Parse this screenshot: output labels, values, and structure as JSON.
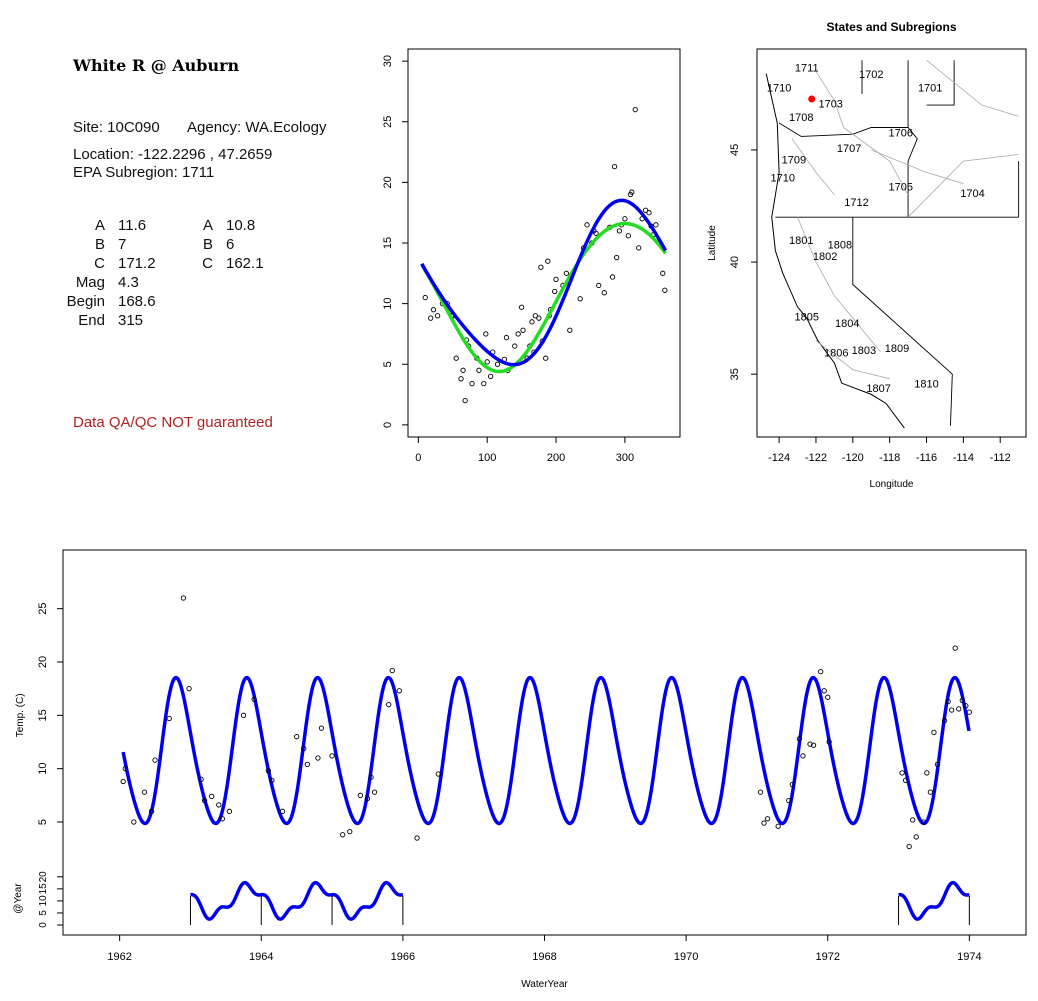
{
  "info": {
    "title": "White R @ Auburn",
    "site": "Site: 10C090",
    "agency": "Agency: WA.Ecology",
    "location": "Location: -122.2296 , 47.2659",
    "subregion": "EPA Subregion: 1711",
    "params_left": [
      {
        "k": "A",
        "v": "11.6"
      },
      {
        "k": "B",
        "v": "7"
      },
      {
        "k": "C",
        "v": "171.2"
      },
      {
        "k": "Mag",
        "v": "4.3"
      },
      {
        "k": "Begin",
        "v": "168.6"
      },
      {
        "k": "End",
        "v": "315"
      }
    ],
    "params_right": [
      {
        "k": "A",
        "v": "10.8"
      },
      {
        "k": "B",
        "v": "6"
      },
      {
        "k": "C",
        "v": "162.1"
      }
    ],
    "disclaimer": "Data QA/QC NOT guaranteed"
  },
  "colors": {
    "fit_blue": "#0000ee",
    "fit_green": "#22dd22",
    "site_marker": "#ff0000",
    "disclaimer": "#b22222"
  },
  "chart_data": [
    {
      "type": "scatter",
      "id": "seasonal",
      "title": "",
      "xlabel": "",
      "ylabel": "",
      "xlim": [
        -15,
        380
      ],
      "ylim": [
        -1,
        31
      ],
      "xticks": [
        0,
        100,
        200,
        300
      ],
      "yticks": [
        0,
        5,
        10,
        15,
        20,
        25,
        30
      ],
      "points": [
        [
          10,
          10.5
        ],
        [
          18,
          8.8
        ],
        [
          22,
          9.5
        ],
        [
          28,
          9.0
        ],
        [
          35,
          10
        ],
        [
          42,
          10
        ],
        [
          48,
          9
        ],
        [
          50,
          9
        ],
        [
          55,
          5.5
        ],
        [
          62,
          3.8
        ],
        [
          65,
          4.5
        ],
        [
          68,
          2
        ],
        [
          70,
          7
        ],
        [
          73,
          6.5
        ],
        [
          78,
          3.4
        ],
        [
          85,
          5.5
        ],
        [
          88,
          4.5
        ],
        [
          95,
          3.4
        ],
        [
          98,
          7.5
        ],
        [
          100,
          5.2
        ],
        [
          105,
          4
        ],
        [
          108,
          6
        ],
        [
          115,
          5
        ],
        [
          125,
          5.4
        ],
        [
          128,
          7.2
        ],
        [
          130,
          4.5
        ],
        [
          140,
          6.5
        ],
        [
          145,
          7.5
        ],
        [
          150,
          9.7
        ],
        [
          152,
          7.8
        ],
        [
          158,
          5.5
        ],
        [
          162,
          6.5
        ],
        [
          165,
          8.5
        ],
        [
          168,
          6
        ],
        [
          170,
          9
        ],
        [
          175,
          8.8
        ],
        [
          178,
          13
        ],
        [
          180,
          6.9
        ],
        [
          185,
          5.5
        ],
        [
          188,
          13.5
        ],
        [
          190,
          9
        ],
        [
          192,
          9.5
        ],
        [
          198,
          11
        ],
        [
          200,
          12
        ],
        [
          210,
          11.5
        ],
        [
          215,
          12.5
        ],
        [
          220,
          7.8
        ],
        [
          235,
          10.4
        ],
        [
          240,
          14.6
        ],
        [
          245,
          16.5
        ],
        [
          252,
          15
        ],
        [
          255,
          16
        ],
        [
          258,
          15.8
        ],
        [
          262,
          11.5
        ],
        [
          270,
          10.9
        ],
        [
          278,
          16.3
        ],
        [
          282,
          12.2
        ],
        [
          285,
          21.3
        ],
        [
          288,
          13.8
        ],
        [
          292,
          16
        ],
        [
          295,
          16.5
        ],
        [
          300,
          17
        ],
        [
          305,
          15.6
        ],
        [
          308,
          19
        ],
        [
          310,
          19.2
        ],
        [
          315,
          26
        ],
        [
          320,
          14.6
        ],
        [
          325,
          17
        ],
        [
          330,
          17.7
        ],
        [
          335,
          17.5
        ],
        [
          338,
          16.4
        ],
        [
          342,
          15.7
        ],
        [
          345,
          16.5
        ],
        [
          355,
          12.5
        ],
        [
          358,
          11.1
        ]
      ],
      "series": [
        {
          "name": "",
          "color": "#22dd22",
          "curve": "green"
        },
        {
          "name": "",
          "color": "#0000ee",
          "curve": "blue"
        }
      ]
    },
    {
      "type": "map",
      "id": "subregions",
      "title": "States and Subregions",
      "xlabel": "Longitude",
      "ylabel": "Latitude",
      "xlim": [
        -125.2,
        -110.6
      ],
      "ylim": [
        32.2,
        49.5
      ],
      "xticks": [
        -124,
        -122,
        -120,
        -118,
        -116,
        -114,
        -112
      ],
      "yticks": [
        35,
        40,
        45
      ],
      "site": {
        "lon": -122.23,
        "lat": 47.27
      },
      "region_labels": [
        {
          "t": "1711",
          "lon": -122.5,
          "lat": 48.5
        },
        {
          "t": "1702",
          "lon": -119.0,
          "lat": 48.2
        },
        {
          "t": "1701",
          "lon": -115.8,
          "lat": 47.6
        },
        {
          "t": "1710",
          "lon": -124.0,
          "lat": 47.6
        },
        {
          "t": "1703",
          "lon": -121.2,
          "lat": 46.9
        },
        {
          "t": "1708",
          "lon": -122.8,
          "lat": 46.3
        },
        {
          "t": "1706",
          "lon": -117.4,
          "lat": 45.6
        },
        {
          "t": "1707",
          "lon": -120.2,
          "lat": 44.9
        },
        {
          "t": "1709",
          "lon": -123.2,
          "lat": 44.4
        },
        {
          "t": "1710",
          "lon": -123.8,
          "lat": 43.6
        },
        {
          "t": "1705",
          "lon": -117.4,
          "lat": 43.2
        },
        {
          "t": "1704",
          "lon": -113.5,
          "lat": 42.9
        },
        {
          "t": "1712",
          "lon": -119.8,
          "lat": 42.5
        },
        {
          "t": "1801",
          "lon": -122.8,
          "lat": 40.8
        },
        {
          "t": "1808",
          "lon": -120.7,
          "lat": 40.6
        },
        {
          "t": "1802",
          "lon": -121.5,
          "lat": 40.1
        },
        {
          "t": "1805",
          "lon": -122.5,
          "lat": 37.4
        },
        {
          "t": "1804",
          "lon": -120.3,
          "lat": 37.1
        },
        {
          "t": "1806",
          "lon": -120.9,
          "lat": 35.8
        },
        {
          "t": "1803",
          "lon": -119.4,
          "lat": 35.9
        },
        {
          "t": "1809",
          "lon": -117.6,
          "lat": 36.0
        },
        {
          "t": "1807",
          "lon": -118.6,
          "lat": 34.2
        },
        {
          "t": "1810",
          "lon": -116.0,
          "lat": 34.4
        }
      ]
    },
    {
      "type": "line",
      "id": "timeseries",
      "title": "",
      "xlabel": "WaterYear",
      "ylabel": "Temp. (C)",
      "ylabel2": "@Year",
      "xlim": [
        1961.2,
        1974.8
      ],
      "ylim": [
        0.5,
        30.5
      ],
      "xticks": [
        1962,
        1964,
        1966,
        1968,
        1970,
        1972,
        1974
      ],
      "yticks": [
        5,
        10,
        15,
        20,
        25
      ],
      "yticks2": [
        0,
        5,
        10,
        15,
        20
      ],
      "fit": {
        "mean": 11.3,
        "amp": 6.7,
        "peak_phase": 0.82,
        "start": 1962.05,
        "end": 1974.0
      },
      "points": [
        [
          1962.05,
          8.8
        ],
        [
          1962.08,
          10
        ],
        [
          1962.2,
          5
        ],
        [
          1962.35,
          7.8
        ],
        [
          1962.45,
          6
        ],
        [
          1962.5,
          10.8
        ],
        [
          1962.7,
          14.7
        ],
        [
          1962.9,
          26
        ],
        [
          1962.98,
          17.5
        ],
        [
          1963.15,
          9
        ],
        [
          1963.2,
          7
        ],
        [
          1963.3,
          7.4
        ],
        [
          1963.4,
          6.6
        ],
        [
          1963.45,
          5.3
        ],
        [
          1963.55,
          6
        ],
        [
          1963.75,
          15
        ],
        [
          1963.9,
          16.5
        ],
        [
          1964.1,
          9.8
        ],
        [
          1964.15,
          8.9
        ],
        [
          1964.3,
          6
        ],
        [
          1964.5,
          13
        ],
        [
          1964.6,
          11.9
        ],
        [
          1964.65,
          10.4
        ],
        [
          1964.8,
          11
        ],
        [
          1964.85,
          13.8
        ],
        [
          1965.0,
          11.2
        ],
        [
          1965.15,
          3.8
        ],
        [
          1965.25,
          4.1
        ],
        [
          1965.4,
          7.5
        ],
        [
          1965.5,
          7.2
        ],
        [
          1965.55,
          9.2
        ],
        [
          1965.6,
          7.8
        ],
        [
          1965.8,
          16
        ],
        [
          1965.85,
          19.2
        ],
        [
          1965.95,
          17.3
        ],
        [
          1966.2,
          3.5
        ],
        [
          1966.5,
          9.5
        ],
        [
          1971.05,
          7.8
        ],
        [
          1971.1,
          4.9
        ],
        [
          1971.15,
          5.3
        ],
        [
          1971.3,
          4.6
        ],
        [
          1971.45,
          7
        ],
        [
          1971.5,
          8.5
        ],
        [
          1971.6,
          12.8
        ],
        [
          1971.65,
          11.2
        ],
        [
          1971.75,
          12.3
        ],
        [
          1971.8,
          12.2
        ],
        [
          1971.9,
          19.1
        ],
        [
          1971.95,
          17.3
        ],
        [
          1972.0,
          16.7
        ],
        [
          1972.02,
          12.5
        ],
        [
          1973.05,
          9.6
        ],
        [
          1973.1,
          8.9
        ],
        [
          1973.15,
          2.7
        ],
        [
          1973.2,
          5.2
        ],
        [
          1973.25,
          3.6
        ],
        [
          1973.35,
          5
        ],
        [
          1973.4,
          9.6
        ],
        [
          1973.45,
          7.8
        ],
        [
          1973.5,
          13.4
        ],
        [
          1973.55,
          10.4
        ],
        [
          1973.65,
          14.5
        ],
        [
          1973.7,
          16.3
        ],
        [
          1973.75,
          15.5
        ],
        [
          1973.8,
          21.3
        ],
        [
          1973.85,
          15.6
        ],
        [
          1973.9,
          16.4
        ],
        [
          1973.95,
          15.9
        ],
        [
          1974.0,
          15.3
        ]
      ],
      "year_segments": [
        {
          "start": 1963.0,
          "end": 1966.0
        },
        {
          "start": 1973.0,
          "end": 1974.0
        }
      ]
    }
  ]
}
